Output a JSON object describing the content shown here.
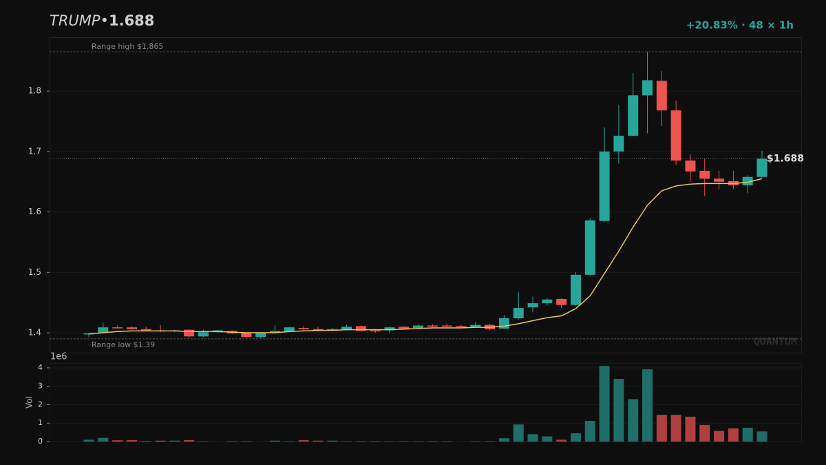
{
  "chart_data": {
    "type": "candlestick",
    "title_symbol": "TRUMP",
    "title_separator": "•",
    "title_price": "1.688",
    "subtitle": "+20.83% · 48 × 1h",
    "watermark": "QUANTUM",
    "up_color": "#26a69a",
    "down_color": "#ef5350",
    "ma_color": "#e8c35a",
    "volume_up_color": "#1f6e68",
    "volume_down_color": "#b04040",
    "open": [
      1.398,
      1.4,
      1.409,
      1.409,
      1.406,
      1.404,
      1.403,
      1.405,
      1.394,
      1.401,
      1.403,
      1.4,
      1.393,
      1.4,
      1.402,
      1.408,
      1.406,
      1.404,
      1.405,
      1.411,
      1.404,
      1.404,
      1.41,
      1.408,
      1.412,
      1.412,
      1.411,
      1.409,
      1.413,
      1.407,
      1.424,
      1.442,
      1.449,
      1.456,
      1.446,
      1.496,
      1.585,
      1.7,
      1.726,
      1.793,
      1.817,
      1.768,
      1.685,
      1.668,
      1.655,
      1.651,
      1.644,
      1.658
    ],
    "high": [
      1.4,
      1.417,
      1.412,
      1.411,
      1.41,
      1.413,
      1.405,
      1.406,
      1.405,
      1.405,
      1.404,
      1.401,
      1.401,
      1.413,
      1.41,
      1.411,
      1.41,
      1.408,
      1.413,
      1.412,
      1.406,
      1.41,
      1.411,
      1.414,
      1.414,
      1.415,
      1.413,
      1.418,
      1.415,
      1.43,
      1.467,
      1.46,
      1.457,
      1.457,
      1.5,
      1.59,
      1.74,
      1.777,
      1.83,
      1.865,
      1.833,
      1.784,
      1.695,
      1.688,
      1.668,
      1.668,
      1.661,
      1.701
    ],
    "low": [
      1.393,
      1.399,
      1.407,
      1.405,
      1.403,
      1.401,
      1.401,
      1.392,
      1.393,
      1.4,
      1.398,
      1.391,
      1.391,
      1.399,
      1.401,
      1.403,
      1.402,
      1.403,
      1.404,
      1.402,
      1.4,
      1.4,
      1.406,
      1.407,
      1.409,
      1.409,
      1.408,
      1.408,
      1.404,
      1.406,
      1.422,
      1.434,
      1.445,
      1.441,
      1.445,
      1.494,
      1.583,
      1.68,
      1.725,
      1.73,
      1.742,
      1.678,
      1.65,
      1.626,
      1.637,
      1.638,
      1.631,
      1.657
    ],
    "close": [
      1.399,
      1.409,
      1.408,
      1.406,
      1.404,
      1.403,
      1.404,
      1.394,
      1.401,
      1.404,
      1.399,
      1.393,
      1.4,
      1.403,
      1.409,
      1.406,
      1.403,
      1.406,
      1.41,
      1.403,
      1.403,
      1.409,
      1.407,
      1.412,
      1.41,
      1.41,
      1.409,
      1.413,
      1.406,
      1.424,
      1.441,
      1.449,
      1.455,
      1.446,
      1.496,
      1.586,
      1.7,
      1.726,
      1.793,
      1.818,
      1.768,
      1.685,
      1.667,
      1.655,
      1.65,
      1.644,
      1.658,
      1.688
    ],
    "ma_values": [
      1.398,
      1.4,
      1.402,
      1.403,
      1.403,
      1.403,
      1.403,
      1.402,
      1.402,
      1.402,
      1.401,
      1.4,
      1.4,
      1.4,
      1.402,
      1.403,
      1.404,
      1.404,
      1.405,
      1.405,
      1.405,
      1.405,
      1.406,
      1.407,
      1.408,
      1.408,
      1.408,
      1.409,
      1.409,
      1.411,
      1.415,
      1.42,
      1.425,
      1.428,
      1.44,
      1.461,
      1.498,
      1.535,
      1.575,
      1.611,
      1.635,
      1.643,
      1.646,
      1.647,
      1.647,
      1.647,
      1.649,
      1.655
    ],
    "volume": [
      0.1,
      0.2,
      0.07,
      0.08,
      0.03,
      0.05,
      0.05,
      0.08,
      0.02,
      0.0,
      0.02,
      0.02,
      0.0,
      0.05,
      0.02,
      0.08,
      0.05,
      0.05,
      0.02,
      0.02,
      0.02,
      0.02,
      0.02,
      0.02,
      0.02,
      0.02,
      0.0,
      0.02,
      0.02,
      0.18,
      0.93,
      0.4,
      0.28,
      0.1,
      0.45,
      1.12,
      4.1,
      3.4,
      2.3,
      3.92,
      1.45,
      1.45,
      1.35,
      0.9,
      0.58,
      0.72,
      0.75,
      0.55
    ],
    "ylim": [
      1.367,
      1.888
    ],
    "yticks": [
      1.4,
      1.5,
      1.6,
      1.7,
      1.8
    ],
    "y2label": "Vol",
    "y2offset": "1e6",
    "y2lim": [
      0,
      4.26
    ],
    "y2ticks": [
      0,
      1,
      2,
      3,
      4
    ],
    "grid": true,
    "reference_lines": [
      {
        "value": 1.865,
        "label": "Range high $1.865"
      },
      {
        "value": 1.39,
        "label": "Range low $1.39"
      }
    ],
    "last_price_line": {
      "value": 1.688,
      "label": "$1.688"
    }
  }
}
